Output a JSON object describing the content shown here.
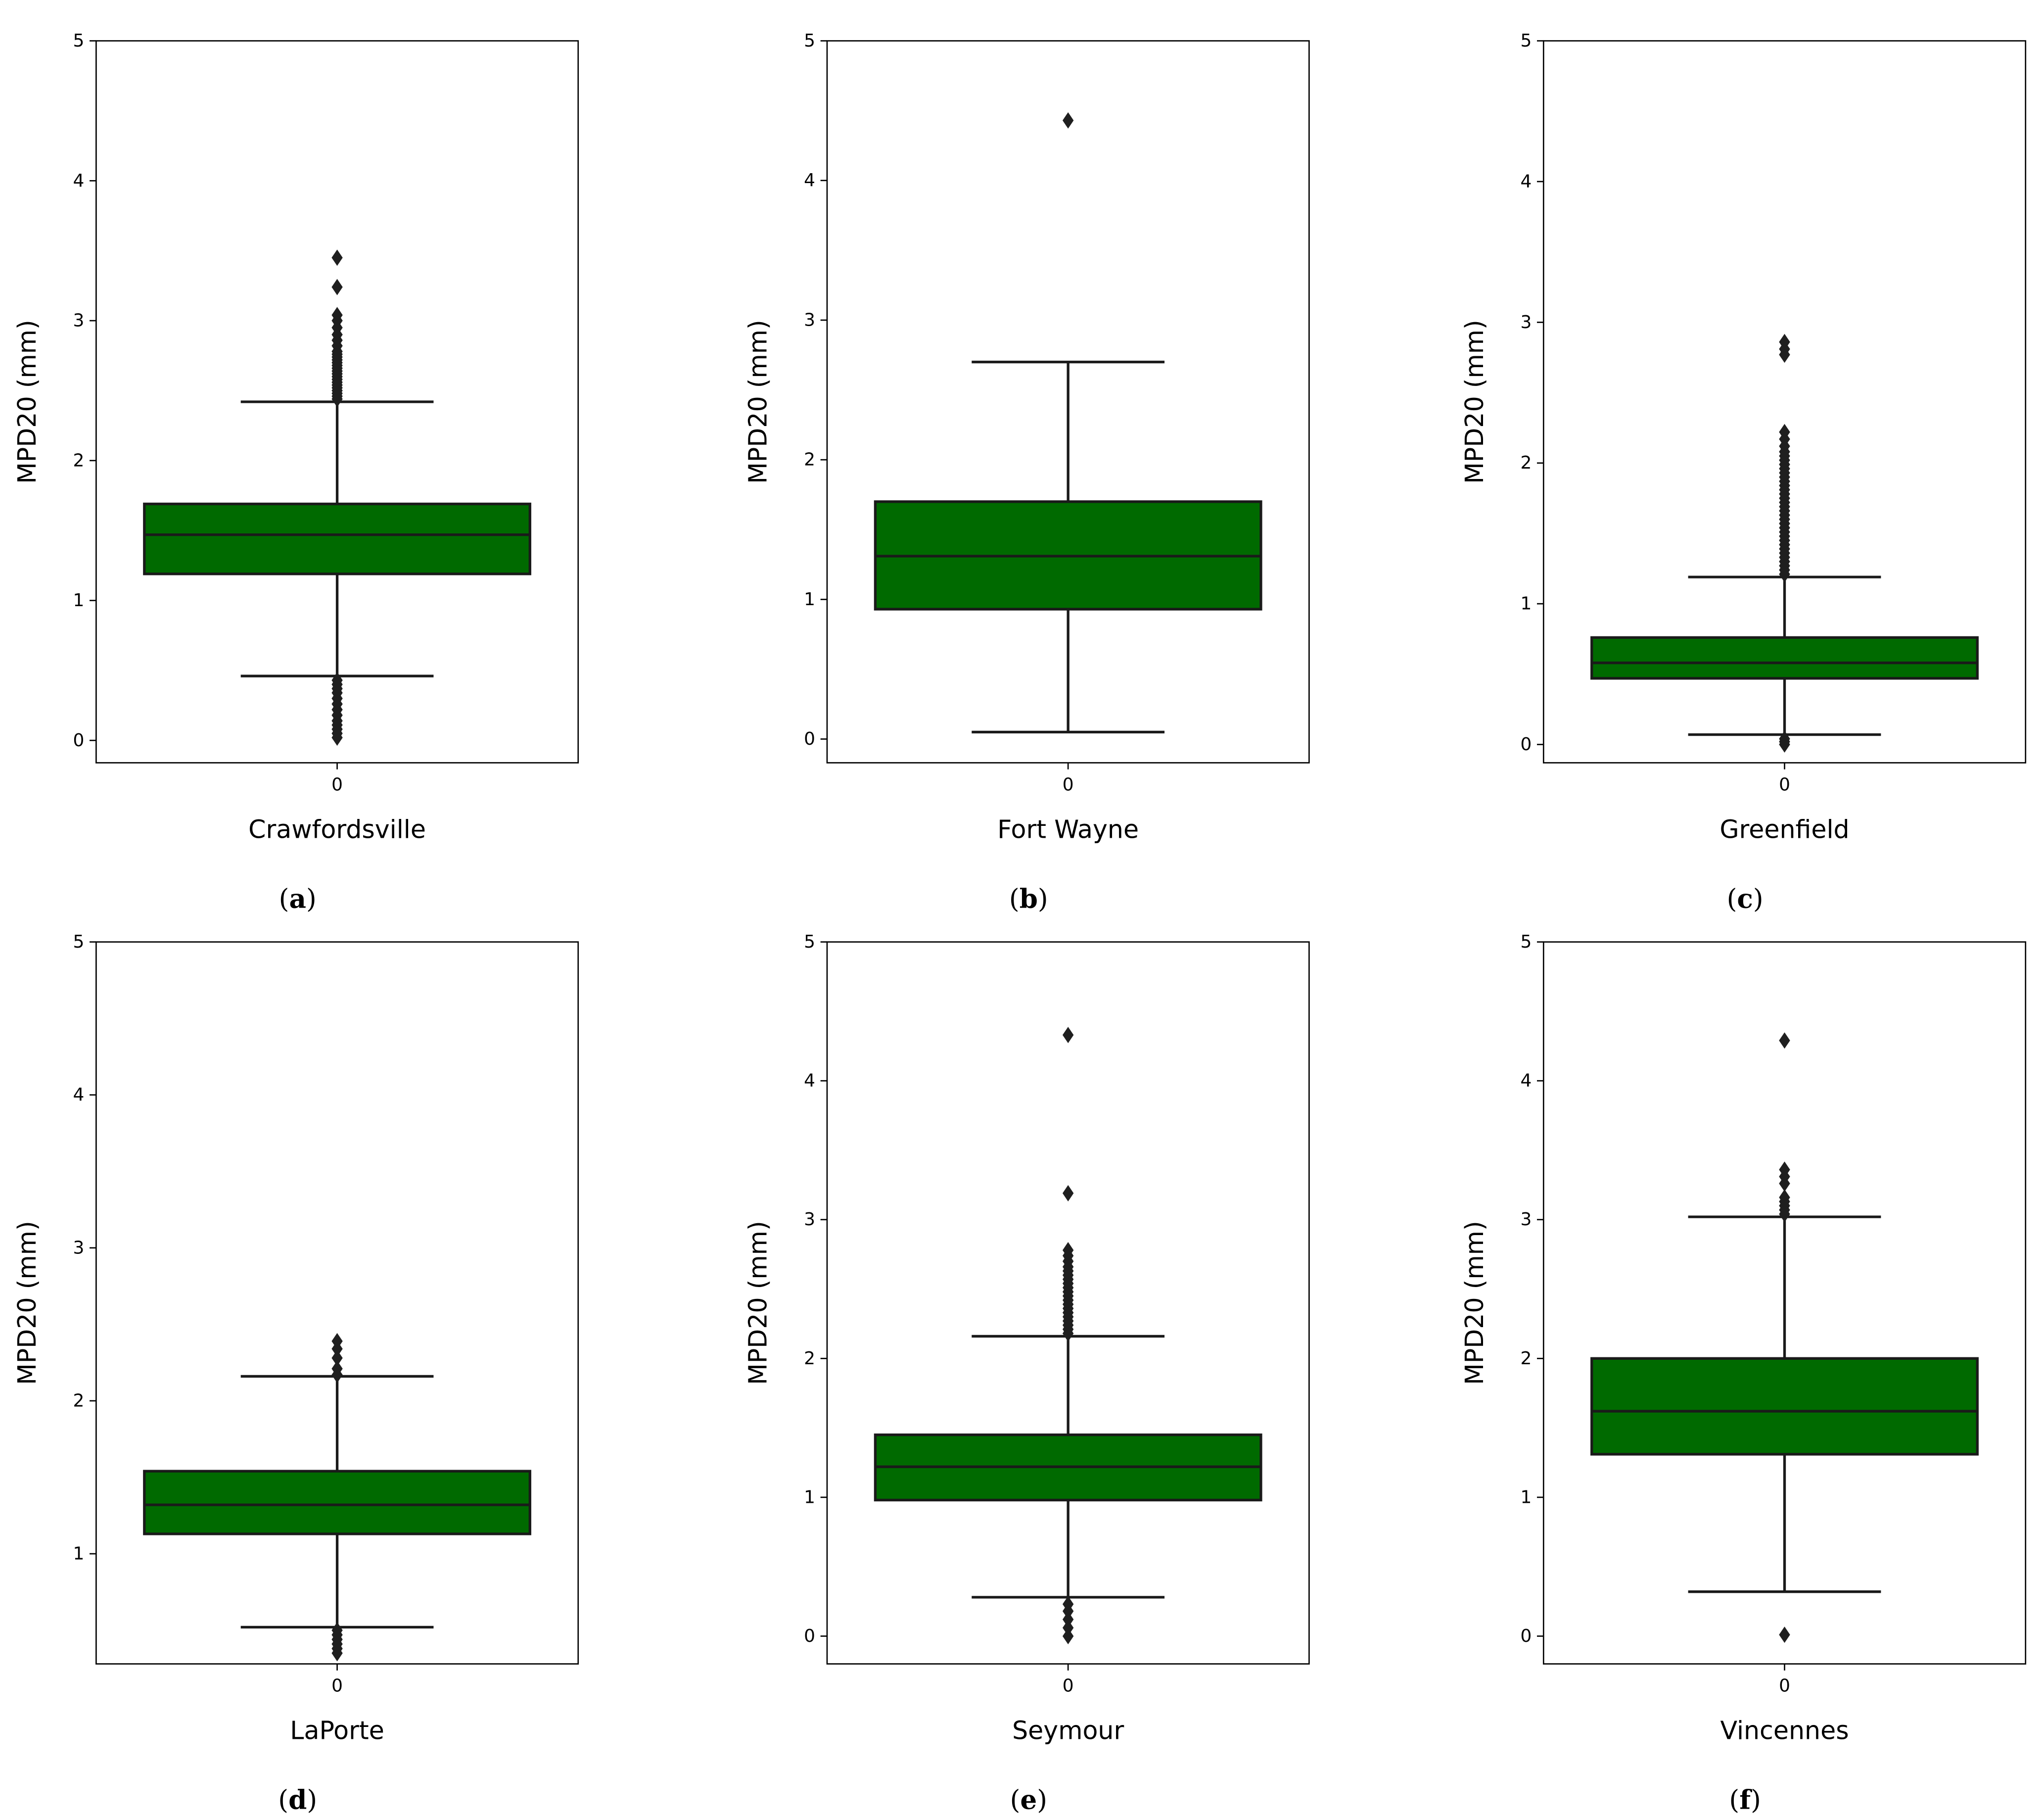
{
  "colors": {
    "box_fill": "#006a00",
    "line": "#1a1a1a",
    "outlier": "#1f1f1f"
  },
  "chart_data": [
    {
      "type": "box",
      "panel_label": "a",
      "xlabel": "Crawfordsville",
      "ylabel": "MPD20 (mm)",
      "categories": [
        "0"
      ],
      "yticks": [
        "0",
        "1",
        "2",
        "3",
        "4",
        "5"
      ],
      "ylim": [
        -0.16,
        5
      ],
      "grid": false,
      "box": {
        "whisker_low": 0.46,
        "q1": 1.19,
        "median": 1.47,
        "q3": 1.69,
        "whisker_high": 2.42
      },
      "outliers_high": [
        2.44,
        2.46,
        2.48,
        2.5,
        2.52,
        2.54,
        2.56,
        2.58,
        2.6,
        2.62,
        2.64,
        2.66,
        2.68,
        2.7,
        2.72,
        2.74,
        2.76,
        2.78,
        2.82,
        2.86,
        2.9,
        2.95,
        3.0,
        3.04,
        3.24,
        3.45
      ],
      "outliers_low": [
        0.02,
        0.05,
        0.08,
        0.11,
        0.14,
        0.18,
        0.22,
        0.26,
        0.3,
        0.34,
        0.37,
        0.4,
        0.43
      ]
    },
    {
      "type": "box",
      "panel_label": "b",
      "xlabel": "Fort Wayne",
      "ylabel": "MPD20 (mm)",
      "categories": [
        "0"
      ],
      "yticks": [
        "0",
        "1",
        "2",
        "3",
        "4",
        "5"
      ],
      "ylim": [
        -0.17,
        5
      ],
      "grid": false,
      "box": {
        "whisker_low": 0.05,
        "q1": 0.93,
        "median": 1.31,
        "q3": 1.7,
        "whisker_high": 2.7
      },
      "outliers_high": [
        4.43
      ],
      "outliers_low": []
    },
    {
      "type": "box",
      "panel_label": "c",
      "xlabel": "Greenfield",
      "ylabel": "MPD20 (mm)",
      "categories": [
        "0"
      ],
      "yticks": [
        "0",
        "1",
        "2",
        "3",
        "4",
        "5"
      ],
      "ylim": [
        -0.13,
        5
      ],
      "grid": false,
      "box": {
        "whisker_low": 0.07,
        "q1": 0.47,
        "median": 0.58,
        "q3": 0.76,
        "whisker_high": 1.19
      },
      "outliers_high": [
        1.21,
        1.24,
        1.27,
        1.3,
        1.33,
        1.36,
        1.39,
        1.42,
        1.45,
        1.48,
        1.51,
        1.54,
        1.57,
        1.6,
        1.63,
        1.66,
        1.69,
        1.72,
        1.75,
        1.78,
        1.81,
        1.84,
        1.87,
        1.9,
        1.93,
        1.96,
        1.99,
        2.02,
        2.05,
        2.08,
        2.12,
        2.17,
        2.22,
        2.77,
        2.81,
        2.86
      ],
      "outliers_low": [
        0.0,
        0.02,
        0.04
      ]
    },
    {
      "type": "box",
      "panel_label": "d",
      "xlabel": "LaPorte",
      "ylabel": "MPD20 (mm)",
      "categories": [
        "0"
      ],
      "yticks": [
        "1",
        "2",
        "3",
        "4",
        "5"
      ],
      "ylim": [
        0.28,
        5
      ],
      "grid": false,
      "box": {
        "whisker_low": 0.52,
        "q1": 1.13,
        "median": 1.32,
        "q3": 1.54,
        "whisker_high": 2.16
      },
      "outliers_high": [
        2.17,
        2.21,
        2.28,
        2.34,
        2.39
      ],
      "outliers_low": [
        0.35,
        0.38,
        0.41,
        0.44,
        0.47,
        0.5
      ]
    },
    {
      "type": "box",
      "panel_label": "e",
      "xlabel": "Seymour",
      "ylabel": "MPD20 (mm)",
      "categories": [
        "0"
      ],
      "yticks": [
        "0",
        "1",
        "2",
        "3",
        "4",
        "5"
      ],
      "ylim": [
        -0.2,
        5
      ],
      "grid": false,
      "box": {
        "whisker_low": 0.28,
        "q1": 0.98,
        "median": 1.22,
        "q3": 1.45,
        "whisker_high": 2.16
      },
      "outliers_high": [
        2.18,
        2.21,
        2.24,
        2.27,
        2.3,
        2.33,
        2.36,
        2.39,
        2.42,
        2.45,
        2.48,
        2.51,
        2.54,
        2.57,
        2.6,
        2.63,
        2.66,
        2.7,
        2.74,
        2.78,
        3.19,
        4.33
      ],
      "outliers_low": [
        0.0,
        0.06,
        0.12,
        0.18,
        0.23
      ]
    },
    {
      "type": "box",
      "panel_label": "f",
      "xlabel": "Vincennes",
      "ylabel": "MPD20 (mm)",
      "categories": [
        "0"
      ],
      "yticks": [
        "0",
        "1",
        "2",
        "3",
        "4",
        "5"
      ],
      "ylim": [
        -0.2,
        5
      ],
      "grid": false,
      "box": {
        "whisker_low": 0.32,
        "q1": 1.31,
        "median": 1.62,
        "q3": 2.0,
        "whisker_high": 3.02
      },
      "outliers_high": [
        3.04,
        3.07,
        3.1,
        3.13,
        3.16,
        3.26,
        3.31,
        3.36,
        4.29
      ],
      "outliers_low": [
        0.01
      ]
    }
  ]
}
